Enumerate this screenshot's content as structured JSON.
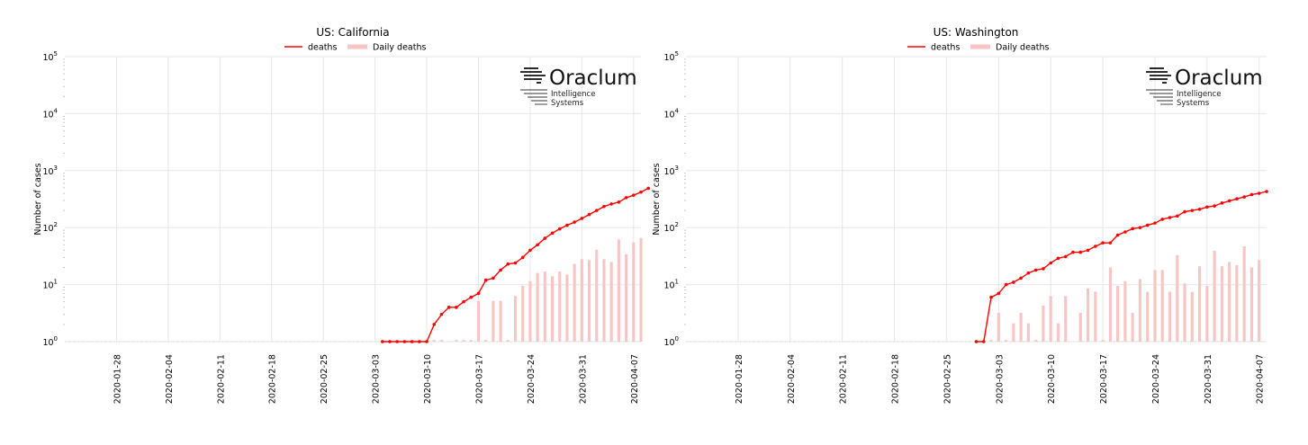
{
  "colors": {
    "deaths": "#ff0000",
    "daily": "#f8c4c4",
    "grid": "#e6e6e6"
  },
  "logo": {
    "name": "Oraclum",
    "line1": "Intelligence",
    "line2": "Systems"
  },
  "chart_data": [
    {
      "type": "line",
      "title": "US: California",
      "ylabel": "Number of cases",
      "yscale": "log",
      "ylim": [
        1,
        100000
      ],
      "yticks": [
        {
          "value": 1,
          "base": "10",
          "exp": "0"
        },
        {
          "value": 10,
          "base": "10",
          "exp": "1"
        },
        {
          "value": 100,
          "base": "10",
          "exp": "2"
        },
        {
          "value": 1000,
          "base": "10",
          "exp": "3"
        },
        {
          "value": 10000,
          "base": "10",
          "exp": "4"
        },
        {
          "value": 100000,
          "base": "10",
          "exp": "5"
        }
      ],
      "xlim": [
        "2020-01-21",
        "2020-04-08"
      ],
      "xticks": [
        "2020-01-28",
        "2020-02-04",
        "2020-02-11",
        "2020-02-18",
        "2020-02-25",
        "2020-03-03",
        "2020-03-10",
        "2020-03-17",
        "2020-03-24",
        "2020-03-31",
        "2020-04-07"
      ],
      "legend": [
        "deaths",
        "Daily deaths"
      ],
      "legend_position": "top-center",
      "grid": true,
      "series": [
        {
          "name": "deaths",
          "kind": "line",
          "start": "2020-03-04",
          "values": [
            1,
            1,
            1,
            1,
            1,
            1,
            1,
            2,
            3,
            4,
            4,
            5,
            6,
            7,
            12,
            13,
            18,
            23,
            24,
            30,
            40,
            50,
            65,
            80,
            95,
            110,
            125,
            145,
            170,
            200,
            235,
            260,
            280,
            335,
            370,
            420,
            490
          ]
        },
        {
          "name": "Daily deaths",
          "kind": "bar",
          "start": "2020-03-10",
          "values": [
            1,
            1,
            1,
            0,
            1,
            1,
            1,
            5.2,
            1,
            5.2,
            5.2,
            1,
            6.3,
            9.5,
            11.5,
            16,
            17,
            14,
            17,
            15,
            23,
            28,
            27,
            41,
            28,
            25,
            62,
            34,
            55,
            66
          ]
        }
      ]
    },
    {
      "type": "line",
      "title": "US: Washington",
      "ylabel": "Number of cases",
      "yscale": "log",
      "ylim": [
        1,
        100000
      ],
      "yticks": [
        {
          "value": 1,
          "base": "10",
          "exp": "0"
        },
        {
          "value": 10,
          "base": "10",
          "exp": "1"
        },
        {
          "value": 100,
          "base": "10",
          "exp": "2"
        },
        {
          "value": 1000,
          "base": "10",
          "exp": "3"
        },
        {
          "value": 10000,
          "base": "10",
          "exp": "4"
        },
        {
          "value": 100000,
          "base": "10",
          "exp": "5"
        }
      ],
      "xlim": [
        "2020-01-21",
        "2020-04-08"
      ],
      "xticks": [
        "2020-01-28",
        "2020-02-04",
        "2020-02-11",
        "2020-02-18",
        "2020-02-25",
        "2020-03-03",
        "2020-03-10",
        "2020-03-17",
        "2020-03-24",
        "2020-03-31",
        "2020-04-07"
      ],
      "legend": [
        "deaths",
        "Daily deaths"
      ],
      "legend_position": "top-center",
      "grid": true,
      "series": [
        {
          "name": "deaths",
          "kind": "line",
          "start": "2020-02-29",
          "values": [
            1,
            1,
            6,
            7,
            10,
            11,
            13,
            16,
            18,
            19,
            24,
            29,
            31,
            37,
            37,
            40,
            47,
            54,
            54,
            74,
            84,
            96,
            100,
            110,
            120,
            140,
            150,
            160,
            190,
            200,
            210,
            230,
            240,
            270,
            295,
            320,
            345,
            380,
            400,
            430
          ]
        },
        {
          "name": "Daily deaths",
          "kind": "bar",
          "start": "2020-03-02",
          "values": [
            1,
            3.2,
            1,
            2.1,
            3.2,
            2.1,
            1,
            4.3,
            6.3,
            2.1,
            6.3,
            0,
            3.2,
            8.6,
            7.5,
            1,
            20,
            9.5,
            11.5,
            3.2,
            12.5,
            7.5,
            18,
            18,
            7.5,
            33,
            10.5,
            7.5,
            21,
            9.5,
            39,
            21,
            25,
            22,
            47,
            20,
            27
          ]
        }
      ]
    }
  ]
}
